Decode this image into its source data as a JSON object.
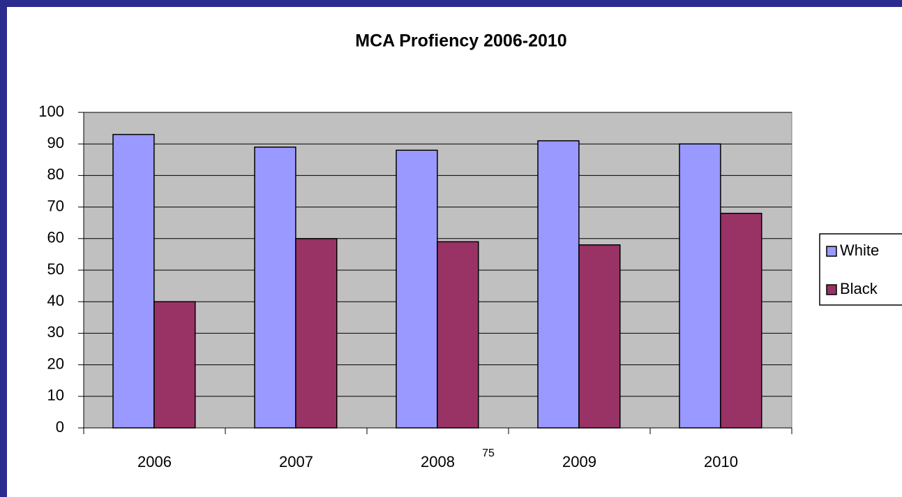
{
  "chart_data": {
    "type": "bar",
    "title": "MCA Profiency 2006-2010",
    "categories": [
      "2006",
      "2007",
      "2008",
      "2009",
      "2010"
    ],
    "series": [
      {
        "name": "White",
        "color": "#9999ff",
        "values": [
          93,
          89,
          88,
          91,
          90
        ]
      },
      {
        "name": "Black",
        "color": "#993366",
        "values": [
          40,
          60,
          59,
          58,
          68
        ]
      }
    ],
    "ylim": [
      0,
      100
    ],
    "yticks": [
      0,
      10,
      20,
      30,
      40,
      50,
      60,
      70,
      80,
      90,
      100
    ],
    "grid": true,
    "legend": "right"
  },
  "slide_number": "75"
}
